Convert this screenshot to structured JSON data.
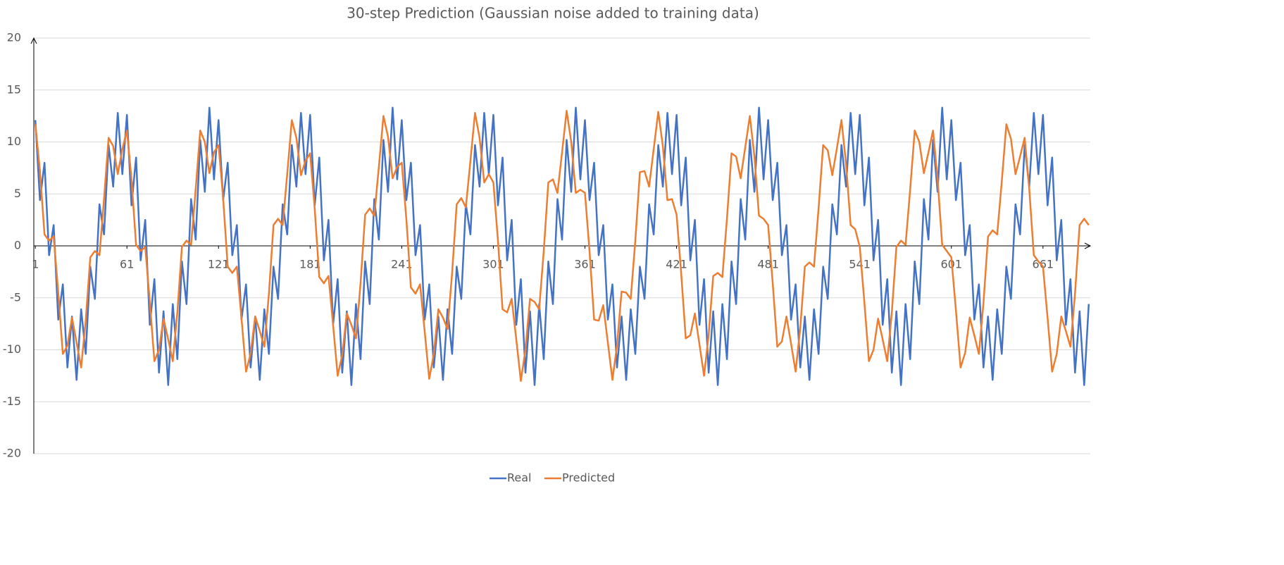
{
  "chart_data": {
    "type": "line",
    "title": "30-step Prediction (Gaussian noise added to training data)",
    "x": [
      1,
      4,
      7,
      10,
      13,
      16,
      19,
      22,
      25,
      28,
      31,
      34,
      37,
      40,
      43,
      46,
      49,
      52,
      55,
      58,
      61,
      64,
      67,
      70,
      73,
      76,
      79,
      82,
      85,
      88,
      91,
      94,
      97,
      100,
      103,
      106,
      109,
      112,
      115,
      118,
      121,
      124,
      127,
      130,
      133,
      136,
      139,
      142,
      145,
      148,
      151,
      154,
      157,
      160,
      163,
      166,
      169,
      172,
      175,
      178,
      181,
      184,
      187,
      190,
      193,
      196,
      199,
      202,
      205,
      208,
      211,
      214,
      217,
      220,
      223,
      226,
      229,
      232,
      235,
      238,
      241,
      244,
      247,
      250,
      253,
      256,
      259,
      262,
      265,
      268,
      271,
      274,
      277,
      280,
      283,
      286,
      289,
      292,
      295,
      298,
      301,
      304,
      307,
      310,
      313,
      316,
      319,
      322,
      325,
      328,
      331,
      334,
      337,
      340,
      343,
      346,
      349,
      352,
      355,
      358,
      361,
      364,
      367,
      370,
      373,
      376,
      379,
      382,
      385,
      388,
      391,
      394,
      397,
      400,
      403,
      406,
      409,
      412,
      415,
      418,
      421,
      424,
      427,
      430,
      433,
      436,
      439,
      442,
      445,
      448,
      451,
      454,
      457,
      460,
      463,
      466,
      469,
      472,
      475,
      478,
      481,
      484,
      487,
      490,
      493,
      496,
      499,
      502,
      505,
      508,
      511,
      514,
      517,
      520,
      523,
      526,
      529,
      532,
      535,
      538,
      541,
      544,
      547,
      550,
      553,
      556,
      559,
      562,
      565,
      568,
      571,
      574,
      577,
      580,
      583,
      586,
      589,
      592,
      595,
      598,
      601,
      604,
      607,
      610,
      613,
      616,
      619,
      622,
      625,
      628,
      631,
      634,
      637,
      640,
      643,
      646,
      649,
      652,
      655,
      658,
      661,
      664,
      667,
      670,
      673,
      676,
      679,
      682,
      685,
      688,
      691
    ],
    "series": [
      {
        "name": "Real",
        "color": "#4472c4",
        "values": [
          12.1,
          4.4,
          8.0,
          -0.9,
          2.0,
          -7.1,
          -3.7,
          -11.7,
          -6.8,
          -12.9,
          -6.1,
          -10.4,
          -2.0,
          -5.1,
          4.0,
          1.1,
          9.7,
          5.7,
          12.8,
          6.9,
          12.6,
          3.9,
          8.5,
          -1.4,
          2.5,
          -7.6,
          -3.2,
          -12.2,
          -6.3,
          -13.4,
          -5.6,
          -10.9,
          -1.5,
          -5.6,
          4.5,
          0.6,
          10.2,
          5.2,
          13.3,
          6.4,
          12.1,
          4.4,
          8.0,
          -0.9,
          2.0,
          -7.1,
          -3.7,
          -11.7,
          -6.8,
          -12.9,
          -6.1,
          -10.4,
          -2.0,
          -5.1,
          4.0,
          1.1,
          9.7,
          5.7,
          12.8,
          6.9,
          12.6,
          3.9,
          8.5,
          -1.4,
          2.5,
          -7.6,
          -3.2,
          -12.2,
          -6.3,
          -13.4,
          -5.6,
          -10.9,
          -1.5,
          -5.6,
          4.5,
          0.6,
          10.2,
          5.2,
          13.3,
          6.4,
          12.1,
          4.4,
          8.0,
          -0.9,
          2.0,
          -7.1,
          -3.7,
          -11.7,
          -6.8,
          -12.9,
          -6.1,
          -10.4,
          -2.0,
          -5.1,
          4.0,
          1.1,
          9.7,
          5.7,
          12.8,
          6.9,
          12.6,
          3.9,
          8.5,
          -1.4,
          2.5,
          -7.6,
          -3.2,
          -12.2,
          -6.3,
          -13.4,
          -5.6,
          -10.9,
          -1.5,
          -5.6,
          4.5,
          0.6,
          10.2,
          5.2,
          13.3,
          6.4,
          12.1,
          4.4,
          8.0,
          -0.9,
          2.0,
          -7.1,
          -3.7,
          -11.7,
          -6.8,
          -12.9,
          -6.1,
          -10.4,
          -2.0,
          -5.1,
          4.0,
          1.1,
          9.7,
          5.7,
          12.8,
          6.9,
          12.6,
          3.9,
          8.5,
          -1.4,
          2.5,
          -7.6,
          -3.2,
          -12.2,
          -6.3,
          -13.4,
          -5.6,
          -10.9,
          -1.5,
          -5.6,
          4.5,
          0.6,
          10.2,
          5.2,
          13.3,
          6.4,
          12.1,
          4.4,
          8.0,
          -0.9,
          2.0,
          -7.1,
          -3.7,
          -11.7,
          -6.8,
          -12.9,
          -6.1,
          -10.4,
          -2.0,
          -5.1,
          4.0,
          1.1,
          9.7,
          5.7,
          12.8,
          6.9,
          12.6,
          3.9,
          8.5,
          -1.4,
          2.5,
          -7.6,
          -3.2,
          -12.2,
          -6.3,
          -13.4,
          -5.6,
          -10.9,
          -1.5,
          -5.6,
          4.5,
          0.6,
          10.2,
          5.2,
          13.3,
          6.4,
          12.1,
          4.4,
          8.0,
          -0.9,
          2.0,
          -7.1,
          -3.7,
          -11.7,
          -6.8,
          -12.9,
          -6.1,
          -10.4,
          -2.0,
          -5.1,
          4.0,
          1.1,
          9.7,
          5.7,
          12.8,
          6.9,
          12.6,
          3.9,
          8.5,
          -1.4,
          2.5,
          -7.6,
          -3.2,
          -12.2,
          -6.3,
          -13.4,
          -5.6
        ]
      },
      {
        "name": "Predicted",
        "color": "#ed7d31",
        "values": [
          11.7,
          7.2,
          1.1,
          0.5,
          0.9,
          -4.5,
          -10.4,
          -9.6,
          -6.9,
          -9.3,
          -11.7,
          -7.2,
          -1.1,
          -0.5,
          -0.9,
          4.5,
          10.4,
          9.6,
          6.9,
          9.3,
          11.1,
          6.4,
          0.1,
          -0.5,
          -0.1,
          -5.4,
          -11.1,
          -10.0,
          -7.0,
          -9.0,
          -11.1,
          -6.4,
          -0.1,
          0.5,
          0.1,
          5.4,
          11.1,
          10.0,
          7.0,
          9.0,
          9.7,
          4.6,
          -2.0,
          -2.6,
          -2.0,
          -6.9,
          -12.1,
          -10.4,
          -6.8,
          -8.2,
          -9.7,
          -4.6,
          2.0,
          2.6,
          2.0,
          6.9,
          12.1,
          10.4,
          6.8,
          8.2,
          8.9,
          3.6,
          -3.0,
          -3.6,
          -2.9,
          -7.6,
          -12.5,
          -10.5,
          -6.5,
          -7.6,
          -8.9,
          -3.6,
          3.0,
          3.6,
          2.9,
          7.6,
          12.5,
          10.5,
          6.5,
          7.6,
          8.0,
          2.6,
          -4.0,
          -4.6,
          -3.7,
          -8.2,
          -12.8,
          -10.4,
          -6.1,
          -6.9,
          -8.0,
          -2.6,
          4.0,
          4.6,
          3.7,
          8.2,
          12.8,
          10.4,
          6.1,
          6.9,
          6.1,
          0.5,
          -6.1,
          -6.4,
          -5.1,
          -9.0,
          -13.0,
          -10.0,
          -5.1,
          -5.4,
          -6.1,
          -0.5,
          6.1,
          6.4,
          5.1,
          9.0,
          13.0,
          10.0,
          5.1,
          5.4,
          5.1,
          -0.5,
          -7.1,
          -7.2,
          -5.7,
          -9.3,
          -12.9,
          -9.6,
          -4.4,
          -4.5,
          -5.1,
          0.5,
          7.1,
          7.2,
          5.7,
          9.3,
          12.9,
          9.6,
          4.4,
          4.5,
          3.0,
          -2.6,
          -8.9,
          -8.6,
          -6.5,
          -9.5,
          -12.5,
          -8.6,
          -2.9,
          -2.6,
          -3.0,
          2.6,
          8.9,
          8.6,
          6.5,
          9.5,
          12.5,
          8.6,
          2.9,
          2.6,
          2.0,
          -3.6,
          -9.7,
          -9.2,
          -6.8,
          -9.4,
          -12.1,
          -7.9,
          -2.0,
          -1.6,
          -2.0,
          3.6,
          9.7,
          9.2,
          6.8,
          9.4,
          12.1,
          7.9,
          2.0,
          1.6,
          -0.1,
          -5.4,
          -11.1,
          -10.0,
          -7.0,
          -9.0,
          -11.1,
          -6.4,
          -0.1,
          0.5,
          0.1,
          5.4,
          11.1,
          10.0,
          7.0,
          9.0,
          11.1,
          6.4,
          0.1,
          -0.5,
          -1.1,
          -6.2,
          -11.7,
          -10.3,
          -6.9,
          -8.6,
          -10.4,
          -5.5,
          0.9,
          1.5,
          1.1,
          6.2,
          11.7,
          10.3,
          6.9,
          8.6,
          10.4,
          5.5,
          -0.9,
          -1.5,
          -2.0,
          -6.9,
          -12.1,
          -10.4,
          -6.8,
          -8.2,
          -9.7,
          -4.6,
          2.0,
          2.6,
          2.0
        ]
      }
    ],
    "xlim": [
      0,
      692
    ],
    "xticks": [
      1,
      61,
      121,
      181,
      241,
      301,
      361,
      421,
      481,
      541,
      601,
      661
    ],
    "ylim": [
      -20,
      20
    ],
    "yticks": [
      -20,
      -15,
      -10,
      -5,
      0,
      5,
      10,
      15,
      20
    ],
    "grid": true,
    "legend": "bottom"
  }
}
